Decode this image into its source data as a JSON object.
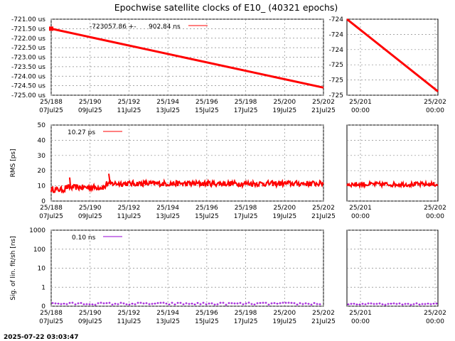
{
  "title": "Epochwise satellite clocks of E10_  (40321 epochs)",
  "timestamp": "2025-07-22 03:03:47",
  "chart_data": [
    {
      "type": "line",
      "name": "clock",
      "legend": {
        "mean": "-723057.86 +-",
        "sigma": "902.84 ns"
      },
      "color": "#ff0000",
      "left": {
        "y_ticks": [
          "-721.00 us",
          "-721.50 us",
          "-722.00 us",
          "-722.50 us",
          "-723.00 us",
          "-723.50 us",
          "-724.00 us",
          "-724.50 us",
          "-725.00 us"
        ],
        "ylim": [
          -725.0,
          -721.0
        ],
        "x_ticks": [
          [
            "25/188",
            "07Jul25"
          ],
          [
            "25/190",
            "09Jul25"
          ],
          [
            "25/192",
            "11Jul25"
          ],
          [
            "25/194",
            "13Jul25"
          ],
          [
            "25/196",
            "15Jul25"
          ],
          [
            "25/198",
            "17Jul25"
          ],
          [
            "25/200",
            "19Jul25"
          ],
          [
            "25/202",
            "21Jul25"
          ]
        ],
        "line": {
          "x": [
            0.0,
            1.0
          ],
          "y": [
            -721.5,
            -724.6
          ]
        }
      },
      "right": {
        "y_ticks": [
          "-724",
          "-724",
          "-724",
          "-725",
          "-725",
          "-725"
        ],
        "ylim": [
          -725.0,
          -724.0
        ],
        "x_ticks": [
          [
            "25/201",
            "00:00"
          ],
          [
            "25/202",
            "00:00"
          ]
        ],
        "line": {
          "x": [
            0.0,
            1.0
          ],
          "y": [
            -724.0,
            -724.95
          ]
        }
      }
    },
    {
      "type": "line",
      "name": "rms",
      "ylabel": "RMS [ps]",
      "legend": {
        "value": "10.27 ps"
      },
      "color": "#ff0000",
      "left": {
        "y_ticks": [
          "50",
          "40",
          "30",
          "20",
          "10",
          "0"
        ],
        "ylim": [
          0,
          50
        ],
        "x_ticks": [
          [
            "25/188",
            "07Jul25"
          ],
          [
            "25/190",
            "09Jul25"
          ],
          [
            "25/192",
            "11Jul25"
          ],
          [
            "25/194",
            "13Jul25"
          ],
          [
            "25/196",
            "15Jul25"
          ],
          [
            "25/198",
            "17Jul25"
          ],
          [
            "25/200",
            "19Jul25"
          ],
          [
            "25/202",
            "21Jul25"
          ]
        ]
      },
      "right": {
        "x_ticks": [
          [
            "25/201",
            "00:00"
          ],
          [
            "25/202",
            "00:00"
          ]
        ]
      }
    },
    {
      "type": "scatter",
      "name": "fit",
      "ylabel": "Sig. of lin. fit/sh [ns]",
      "legend": {
        "value": "0.10 ns"
      },
      "color": "#9400d3",
      "left": {
        "y_ticks": [
          "1000",
          "100",
          "10",
          "1",
          "0"
        ],
        "scale": "log",
        "x_ticks": [
          [
            "25/188",
            "07Jul25"
          ],
          [
            "25/190",
            "09Jul25"
          ],
          [
            "25/192",
            "11Jul25"
          ],
          [
            "25/194",
            "13Jul25"
          ],
          [
            "25/196",
            "15Jul25"
          ],
          [
            "25/198",
            "17Jul25"
          ],
          [
            "25/200",
            "19Jul25"
          ],
          [
            "25/202",
            "21Jul25"
          ]
        ]
      },
      "right": {
        "x_ticks": [
          [
            "25/201",
            "00:00"
          ],
          [
            "25/202",
            "00:00"
          ]
        ]
      }
    }
  ]
}
